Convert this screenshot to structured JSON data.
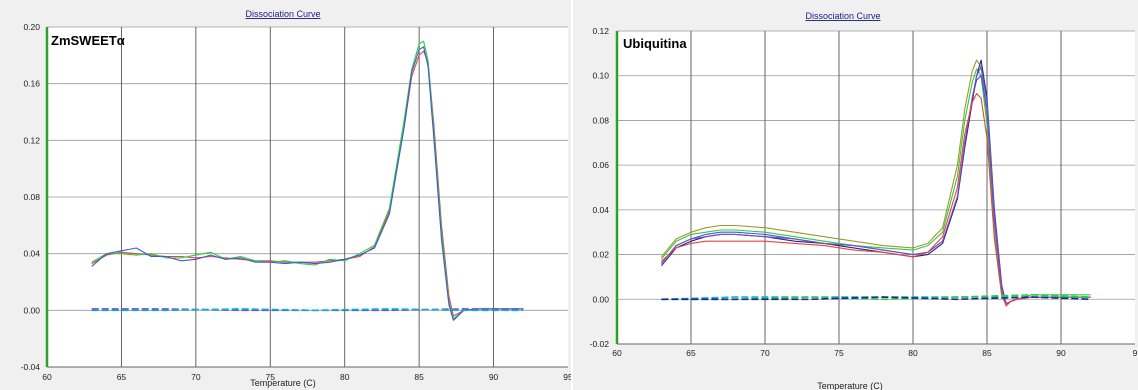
{
  "chart_data": [
    {
      "type": "line",
      "title": "Dissociation Curve",
      "annotation": "ZmSWEETα",
      "xlabel": "Temperature (C)",
      "ylabel": "",
      "xlim": [
        60,
        95
      ],
      "ylim": [
        -0.04,
        0.2
      ],
      "xticks": [
        "60",
        "65",
        "70",
        "75",
        "80",
        "85",
        "90",
        "95"
      ],
      "yticks": [
        "-0.04",
        "0.00",
        "0.04",
        "0.08",
        "0.12",
        "0.16",
        "0.20"
      ],
      "grid": true,
      "colors": [
        "#e8453c",
        "#2ecc40",
        "#3b5bdb",
        "#7a4ec0",
        "#00b4d8"
      ],
      "series": [
        {
          "color": "#e8453c",
          "x": [
            63,
            64,
            65,
            66,
            67,
            68,
            69,
            70,
            71,
            72,
            73,
            74,
            75,
            76,
            77,
            78,
            79,
            80,
            81,
            82,
            83,
            84,
            84.5,
            85,
            85.3,
            85.6,
            86,
            86.5,
            87,
            87.3,
            88,
            89,
            90,
            91,
            92
          ],
          "y": [
            0.033,
            0.039,
            0.041,
            0.04,
            0.039,
            0.038,
            0.038,
            0.037,
            0.038,
            0.037,
            0.036,
            0.035,
            0.035,
            0.034,
            0.034,
            0.034,
            0.035,
            0.036,
            0.038,
            0.045,
            0.07,
            0.13,
            0.165,
            0.18,
            0.183,
            0.175,
            0.13,
            0.06,
            0.01,
            -0.004,
            0.0,
            0.001,
            0.001,
            0.001,
            0.001
          ]
        },
        {
          "color": "#2ecc40",
          "x": [
            63,
            64,
            65,
            66,
            67,
            68,
            69,
            70,
            71,
            72,
            73,
            74,
            75,
            76,
            77,
            78,
            79,
            80,
            81,
            82,
            83,
            84,
            84.5,
            85,
            85.3,
            85.6,
            86,
            86.5,
            87,
            87.3,
            88,
            89,
            90,
            91,
            92
          ],
          "y": [
            0.034,
            0.04,
            0.04,
            0.039,
            0.04,
            0.037,
            0.037,
            0.039,
            0.041,
            0.036,
            0.038,
            0.035,
            0.034,
            0.035,
            0.033,
            0.032,
            0.036,
            0.035,
            0.04,
            0.046,
            0.072,
            0.135,
            0.17,
            0.188,
            0.19,
            0.176,
            0.125,
            0.055,
            0.006,
            -0.006,
            0.0,
            0.001,
            0.001,
            0.001,
            0.001
          ]
        },
        {
          "color": "#3b5bdb",
          "x": [
            63,
            64,
            65,
            66,
            67,
            68,
            69,
            70,
            71,
            72,
            73,
            74,
            75,
            76,
            77,
            78,
            79,
            80,
            81,
            82,
            83,
            84,
            84.5,
            85,
            85.3,
            85.6,
            86,
            86.5,
            87,
            87.3,
            88,
            89,
            90,
            91,
            92
          ],
          "y": [
            0.031,
            0.04,
            0.042,
            0.044,
            0.038,
            0.038,
            0.035,
            0.036,
            0.039,
            0.036,
            0.037,
            0.034,
            0.034,
            0.033,
            0.034,
            0.033,
            0.034,
            0.036,
            0.039,
            0.044,
            0.068,
            0.13,
            0.168,
            0.184,
            0.186,
            0.172,
            0.12,
            0.05,
            0.004,
            -0.007,
            0.0,
            0.001,
            0.001,
            0.001,
            0.001
          ]
        },
        {
          "color": "#7a4ec0",
          "x": [
            63,
            68,
            73,
            78,
            83,
            88,
            92
          ],
          "y": [
            0.001,
            0.001,
            0.0,
            0.0,
            0.0,
            0.001,
            0.001
          ]
        },
        {
          "color": "#00b4d8",
          "x": [
            63,
            68,
            73,
            78,
            83,
            88,
            92
          ],
          "y": [
            0.0,
            0.0,
            0.001,
            0.0,
            0.001,
            0.0,
            0.0
          ]
        }
      ]
    },
    {
      "type": "line",
      "title": "Dissociation Curve",
      "annotation": "Ubiquitina",
      "xlabel": "Temperature (C)",
      "ylabel": "",
      "xlim": [
        60,
        95
      ],
      "ylim": [
        -0.02,
        0.12
      ],
      "xticks": [
        "60",
        "65",
        "70",
        "75",
        "80",
        "85",
        "90",
        "9"
      ],
      "yticks": [
        "-0.02",
        "0.00",
        "0.02",
        "0.04",
        "0.06",
        "0.08",
        "0.10",
        "0.12"
      ],
      "grid": true,
      "colors": [
        "#e8453c",
        "#2ecc40",
        "#3b5bdb",
        "#7a4ec0",
        "#9a9a2a",
        "#00b4d8",
        "#1a2a8a"
      ],
      "series": [
        {
          "color": "#9a9a2a",
          "x": [
            63,
            64,
            65,
            66,
            67,
            68,
            70,
            72,
            74,
            76,
            78,
            80,
            81,
            82,
            83,
            83.5,
            84,
            84.3,
            84.6,
            85,
            85.5,
            86,
            86.3,
            86.6,
            87,
            88,
            89,
            90,
            91,
            92
          ],
          "y": [
            0.019,
            0.027,
            0.03,
            0.032,
            0.033,
            0.033,
            0.032,
            0.03,
            0.028,
            0.026,
            0.024,
            0.023,
            0.025,
            0.032,
            0.06,
            0.085,
            0.102,
            0.107,
            0.104,
            0.08,
            0.03,
            0.002,
            -0.002,
            -0.001,
            0.0,
            0.001,
            0.001,
            0.001,
            0.001,
            0.001
          ]
        },
        {
          "color": "#2ecc40",
          "x": [
            63,
            64,
            65,
            66,
            67,
            68,
            70,
            72,
            74,
            76,
            78,
            80,
            81,
            82,
            83,
            83.5,
            84,
            84.3,
            84.6,
            85,
            85.5,
            86,
            86.3,
            86.6,
            87,
            88,
            89,
            90,
            91,
            92
          ],
          "y": [
            0.018,
            0.026,
            0.029,
            0.03,
            0.031,
            0.031,
            0.03,
            0.028,
            0.026,
            0.024,
            0.023,
            0.022,
            0.024,
            0.03,
            0.055,
            0.08,
            0.097,
            0.103,
            0.1,
            0.078,
            0.028,
            0.001,
            -0.002,
            -0.001,
            0.0,
            0.002,
            0.002,
            0.002,
            0.002,
            0.002
          ]
        },
        {
          "color": "#3b5bdb",
          "x": [
            63,
            64,
            65,
            66,
            67,
            68,
            70,
            72,
            74,
            76,
            78,
            80,
            81,
            82,
            83,
            83.5,
            84,
            84.3,
            84.6,
            85,
            85.5,
            86,
            86.3,
            86.6,
            87,
            88,
            89,
            90,
            91,
            92
          ],
          "y": [
            0.016,
            0.024,
            0.027,
            0.029,
            0.03,
            0.03,
            0.029,
            0.027,
            0.025,
            0.024,
            0.022,
            0.02,
            0.021,
            0.026,
            0.045,
            0.07,
            0.09,
            0.098,
            0.1,
            0.085,
            0.035,
            0.004,
            -0.002,
            -0.001,
            0.0,
            0.001,
            0.001,
            0.001,
            0.001,
            0.001
          ]
        },
        {
          "color": "#1a2a8a",
          "x": [
            63,
            64,
            65,
            66,
            67,
            68,
            70,
            72,
            74,
            76,
            78,
            80,
            81,
            82,
            83,
            83.5,
            84,
            84.3,
            84.6,
            85,
            85.5,
            86,
            86.3,
            86.6,
            87,
            88,
            89,
            90,
            91,
            92
          ],
          "y": [
            0.015,
            0.023,
            0.026,
            0.028,
            0.029,
            0.029,
            0.028,
            0.026,
            0.025,
            0.023,
            0.021,
            0.019,
            0.02,
            0.025,
            0.045,
            0.068,
            0.088,
            0.1,
            0.107,
            0.09,
            0.04,
            0.006,
            -0.002,
            -0.001,
            0.0,
            0.001,
            0.001,
            0.001,
            0.001,
            0.001
          ]
        },
        {
          "color": "#7a4ec0",
          "x": [
            63,
            64,
            65,
            66,
            67,
            68,
            70,
            72,
            74,
            76,
            78,
            80,
            81,
            82,
            83,
            83.5,
            84,
            84.3,
            84.6,
            85,
            85.5,
            86,
            86.3,
            86.6,
            87,
            88,
            89,
            90,
            91,
            92
          ],
          "y": [
            0.016,
            0.024,
            0.027,
            0.028,
            0.029,
            0.029,
            0.028,
            0.027,
            0.025,
            0.024,
            0.022,
            0.02,
            0.021,
            0.026,
            0.046,
            0.07,
            0.09,
            0.1,
            0.104,
            0.088,
            0.038,
            0.005,
            -0.002,
            -0.001,
            0.0,
            0.001,
            0.001,
            0.001,
            0.001,
            0.001
          ]
        },
        {
          "color": "#e8453c",
          "x": [
            63,
            64,
            65,
            66,
            67,
            68,
            70,
            72,
            74,
            76,
            78,
            80,
            81,
            82,
            83,
            83.5,
            84,
            84.3,
            84.6,
            85,
            85.5,
            86,
            86.3,
            86.6,
            87,
            88,
            89,
            90,
            91,
            92
          ],
          "y": [
            0.017,
            0.023,
            0.025,
            0.026,
            0.026,
            0.026,
            0.026,
            0.025,
            0.024,
            0.022,
            0.021,
            0.019,
            0.021,
            0.028,
            0.05,
            0.074,
            0.088,
            0.092,
            0.09,
            0.072,
            0.027,
            0.002,
            -0.003,
            -0.001,
            0.0,
            0.001,
            0.001,
            0.001,
            0.001,
            0.001
          ]
        },
        {
          "color": "#00b4d8",
          "x": [
            63,
            68,
            73,
            78,
            83,
            88,
            92
          ],
          "y": [
            0.0,
            0.001,
            0.001,
            0.001,
            0.001,
            0.001,
            0.001
          ]
        },
        {
          "color": "#2ecc40",
          "x": [
            63,
            68,
            73,
            78,
            83,
            88,
            92
          ],
          "y": [
            0.0,
            0.0,
            0.001,
            0.0,
            0.001,
            0.002,
            0.001
          ]
        },
        {
          "color": "#1a2a8a",
          "x": [
            63,
            68,
            73,
            78,
            83,
            88,
            92
          ],
          "y": [
            0.0,
            0.0,
            0.0,
            0.001,
            0.0,
            0.001,
            0.0
          ]
        }
      ]
    }
  ]
}
